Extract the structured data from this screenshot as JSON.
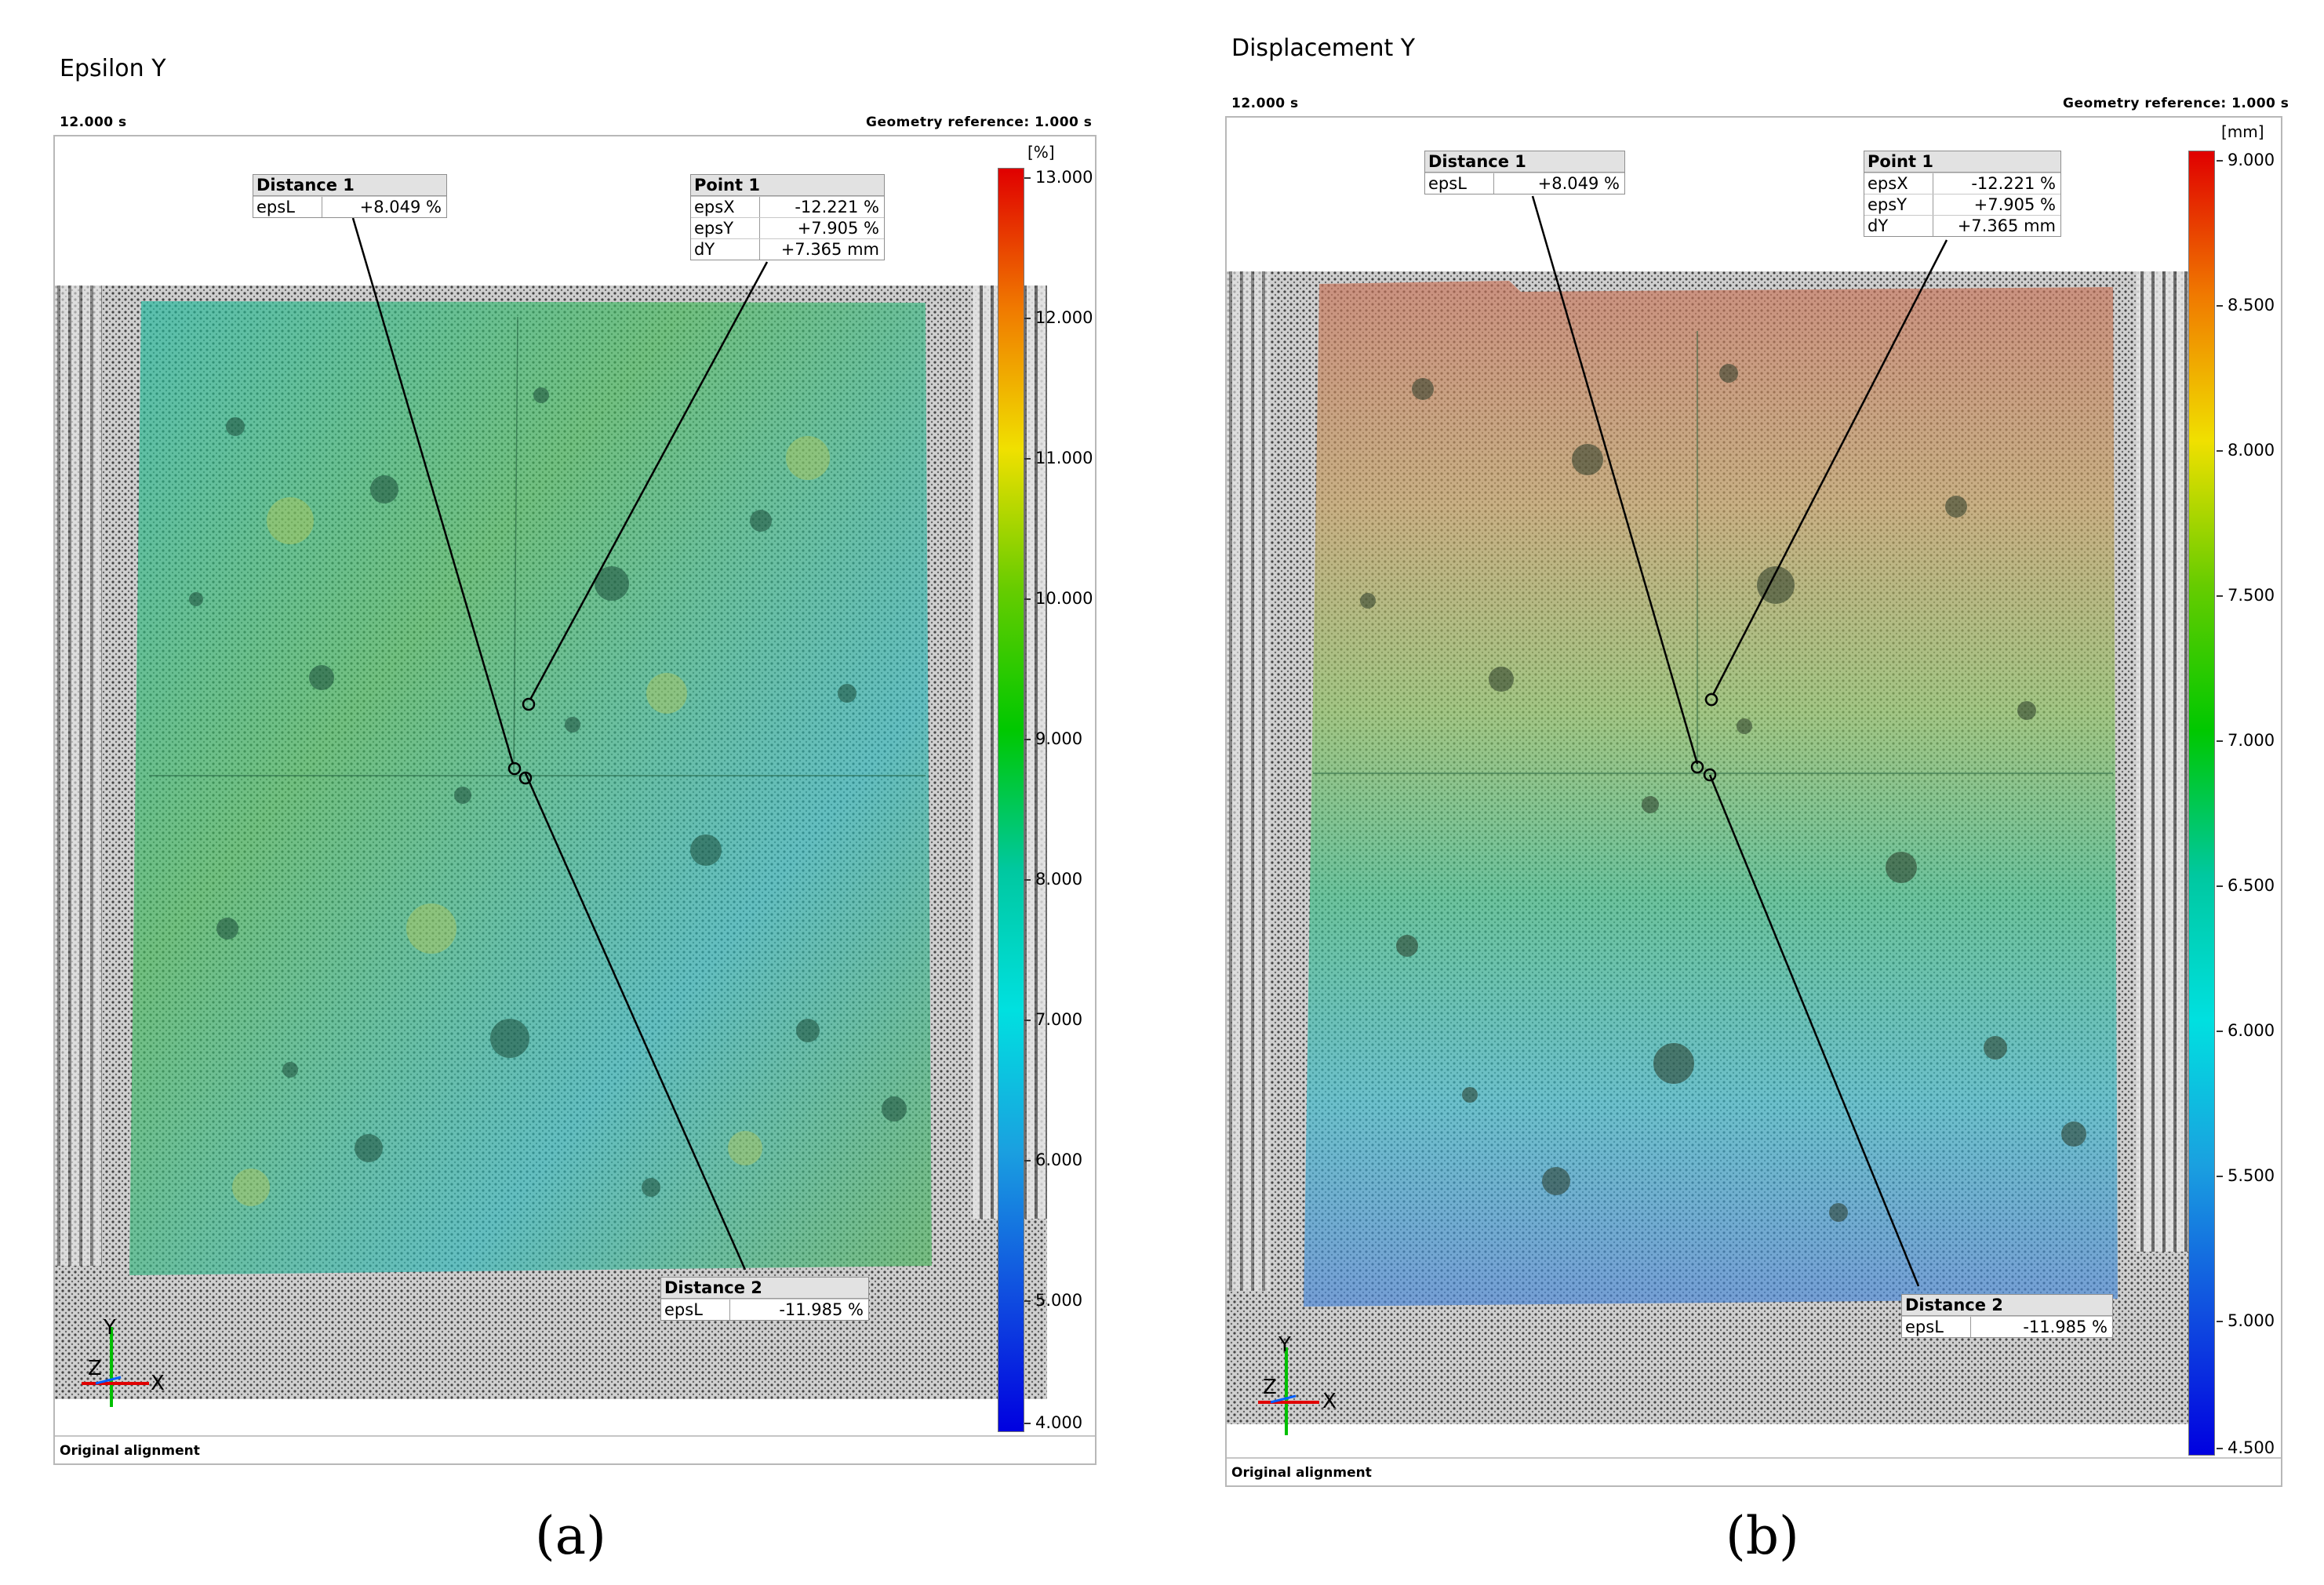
{
  "panels": [
    {
      "id": "a",
      "title": "Epsilon Y",
      "time": "12.000 s",
      "geometry_reference": "Geometry reference: 1.000 s",
      "footer": "Original alignment",
      "scale": {
        "unit": "[%]",
        "ticks": [
          "13.000",
          "12.000",
          "11.000",
          "10.000",
          "9.000",
          "8.000",
          "7.000",
          "6.000",
          "5.000",
          "4.000"
        ]
      },
      "labels": {
        "distance1": {
          "title": "Distance 1",
          "rows": [
            {
              "key": "epsL",
              "value": "+8.049 %"
            }
          ]
        },
        "point1": {
          "title": "Point 1",
          "rows": [
            {
              "key": "epsX",
              "value": "-12.221 %"
            },
            {
              "key": "epsY",
              "value": "+7.905 %"
            },
            {
              "key": "dY",
              "value": "+7.365 mm"
            }
          ]
        },
        "distance2": {
          "title": "Distance 2",
          "rows": [
            {
              "key": "epsL",
              "value": "-11.985 %"
            }
          ]
        }
      },
      "axes": {
        "y": "Y",
        "z": "Z",
        "x": "X"
      },
      "sublabel": "(a)"
    },
    {
      "id": "b",
      "title": "Displacement Y",
      "time": "12.000 s",
      "geometry_reference": "Geometry reference: 1.000 s",
      "footer": "Original alignment",
      "scale": {
        "unit": "[mm]",
        "ticks": [
          "9.000",
          "8.500",
          "8.000",
          "7.500",
          "7.000",
          "6.500",
          "6.000",
          "5.500",
          "5.000",
          "4.500"
        ]
      },
      "labels": {
        "distance1": {
          "title": "Distance 1",
          "rows": [
            {
              "key": "epsL",
              "value": "+8.049 %"
            }
          ]
        },
        "point1": {
          "title": "Point 1",
          "rows": [
            {
              "key": "epsX",
              "value": "-12.221 %"
            },
            {
              "key": "epsY",
              "value": "+7.905 %"
            },
            {
              "key": "dY",
              "value": "+7.365 mm"
            }
          ]
        },
        "distance2": {
          "title": "Distance 2",
          "rows": [
            {
              "key": "epsL",
              "value": "-11.985 %"
            }
          ]
        }
      },
      "axes": {
        "y": "Y",
        "z": "Z",
        "x": "X"
      },
      "sublabel": "(b)"
    }
  ],
  "colors": {
    "scale_gradient": [
      "#e00000",
      "#f07a00",
      "#f0e000",
      "#66cc00",
      "#00c800",
      "#00c8a0",
      "#00e0e0",
      "#1aa0e0",
      "#1050e0",
      "#0000e0"
    ],
    "frame": "#b8b8b8",
    "axis_x": "#e00000",
    "axis_y": "#00c000",
    "axis_z": "#0060ff"
  }
}
